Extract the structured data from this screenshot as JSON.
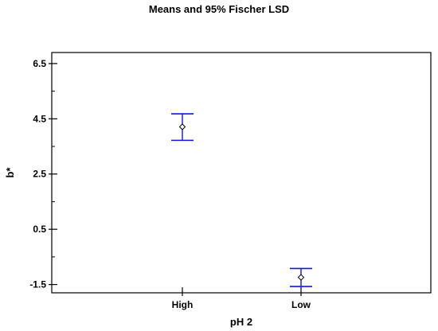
{
  "chart_data": {
    "type": "scatter",
    "title": "Means and 95% Fischer LSD",
    "xlabel": "pH 2",
    "ylabel": "b*",
    "categories": [
      "High",
      "Low"
    ],
    "means": [
      4.21,
      -1.24
    ],
    "lower": [
      3.72,
      -1.57
    ],
    "upper": [
      4.68,
      -0.92
    ],
    "ylim": [
      -1.8,
      6.9
    ],
    "yticks": [
      -1.5,
      0.5,
      2.5,
      4.5,
      6.5
    ],
    "ytick_labels": [
      "-1.5",
      "0.5",
      "2.5",
      "4.5",
      "6.5"
    ],
    "grid": false,
    "colors": {
      "interval": "#1414e6",
      "mean_marker": "#000000",
      "frame": "#000000"
    }
  }
}
